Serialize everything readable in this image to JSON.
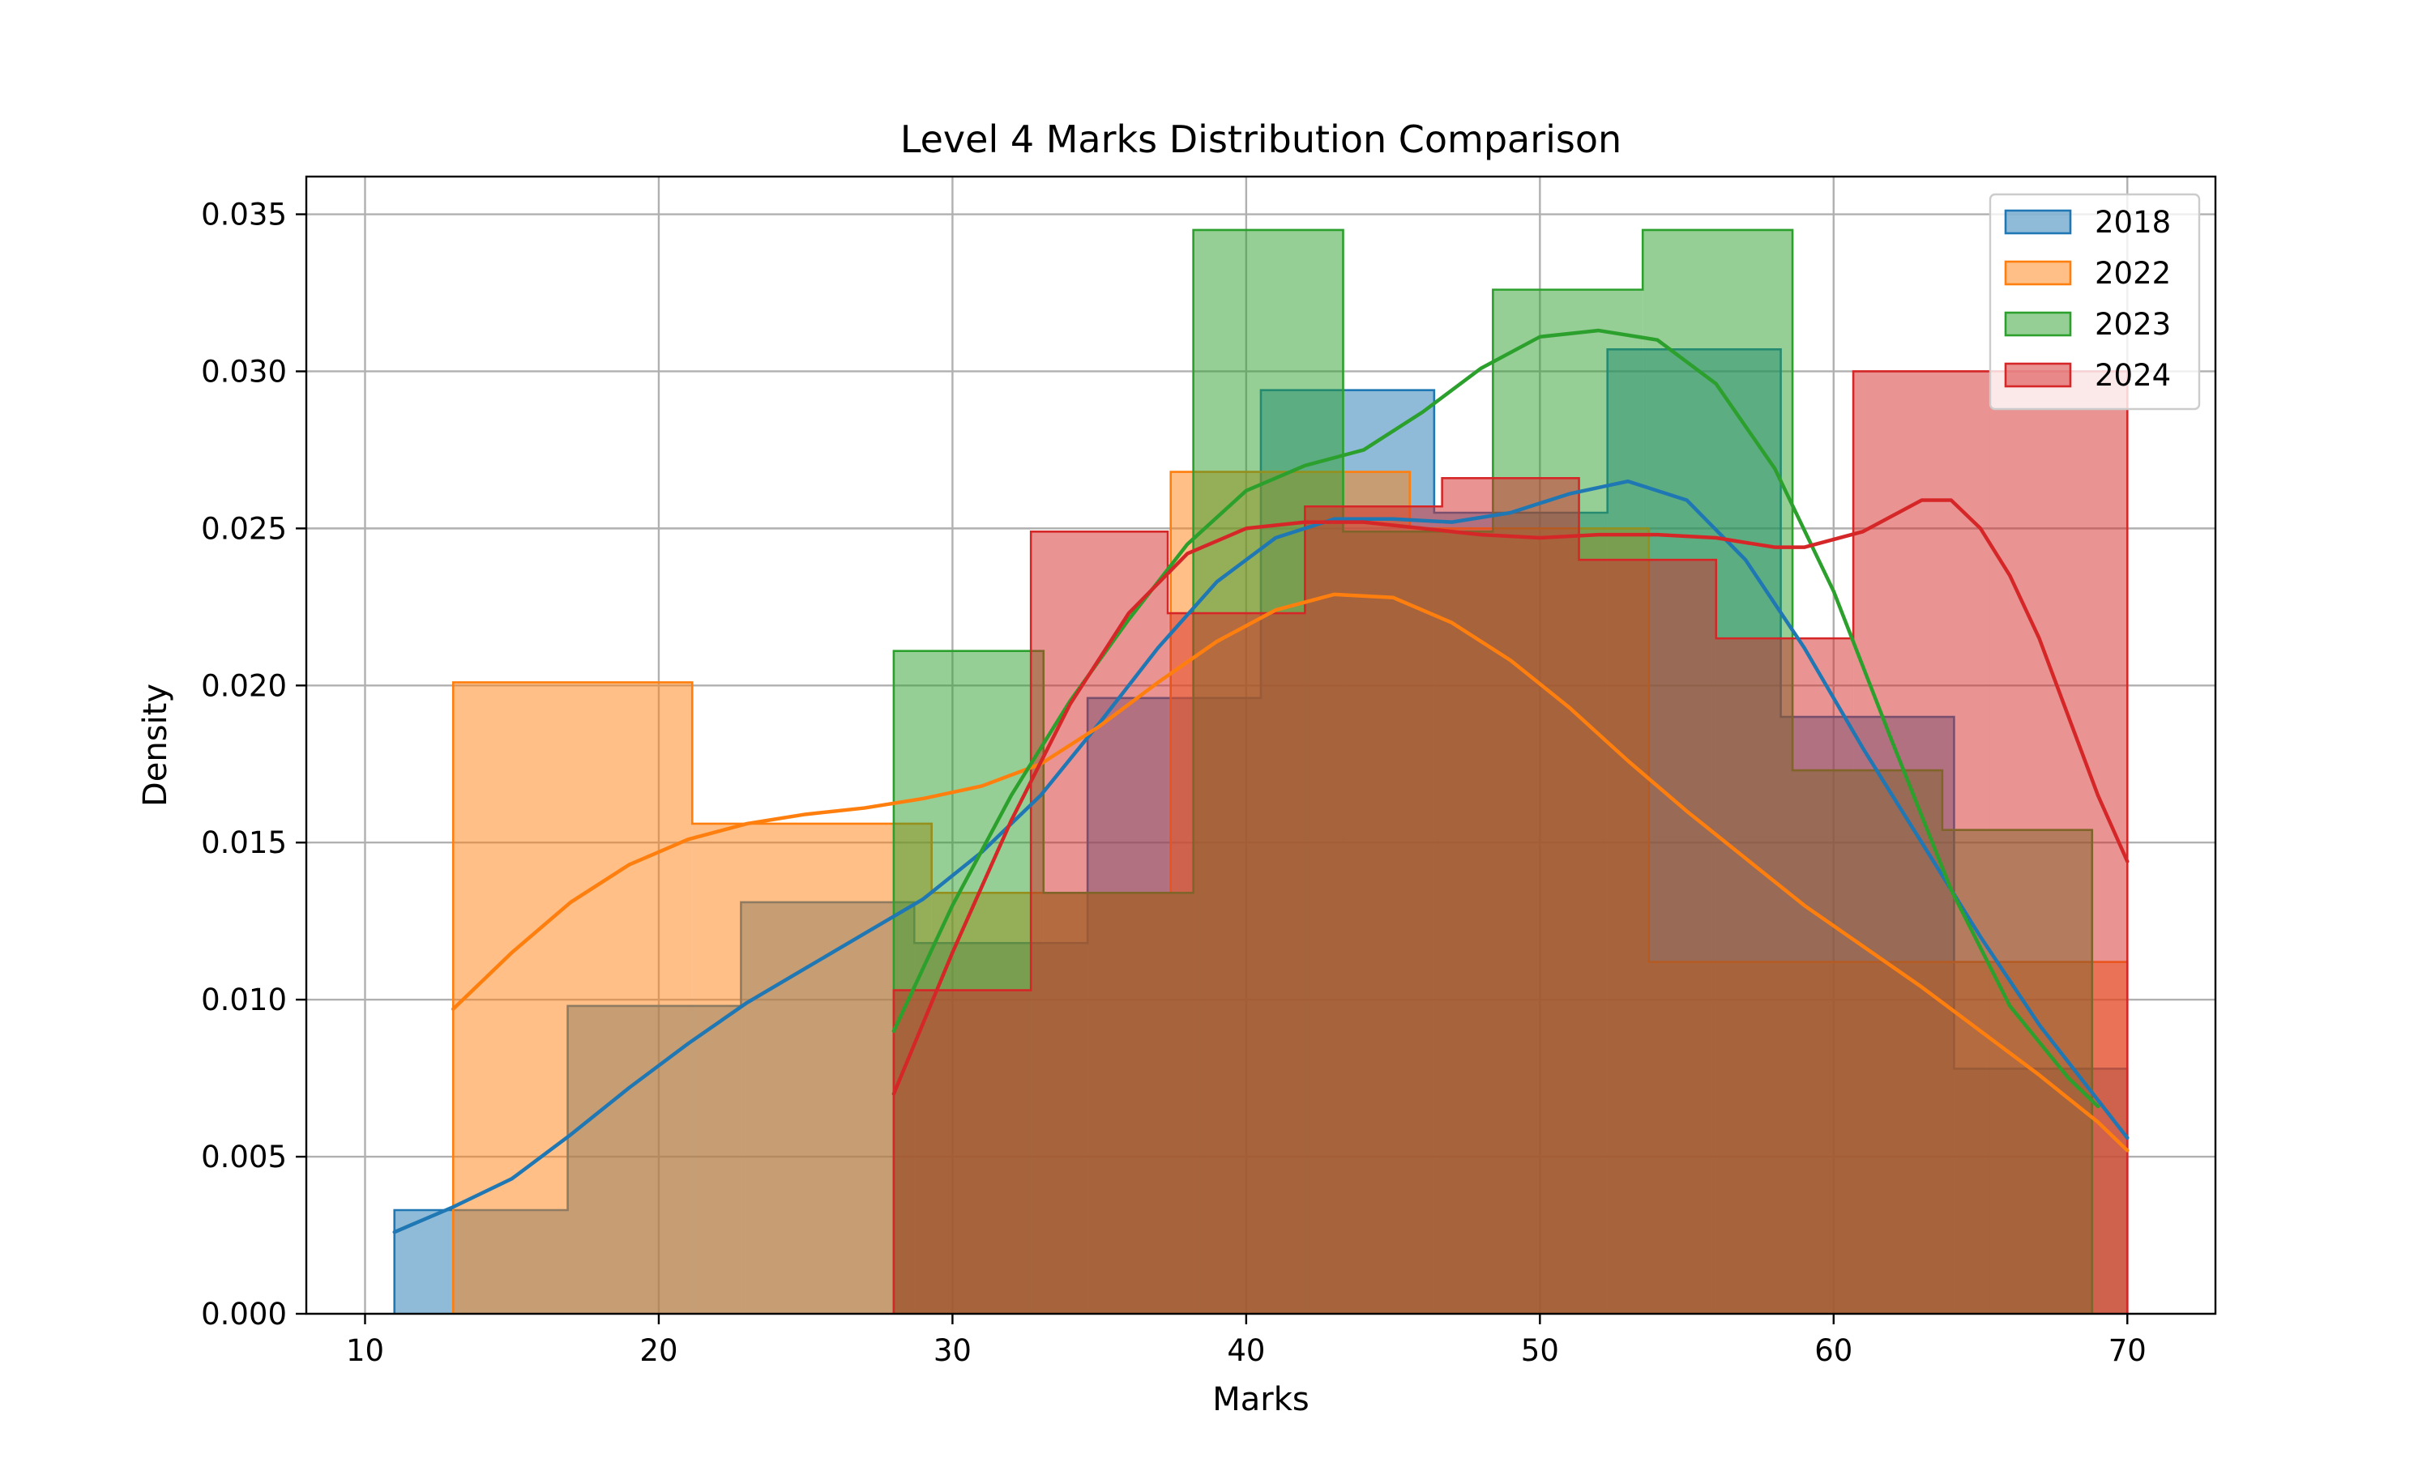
{
  "chart_data": {
    "type": "histogram",
    "title": "Level 4 Marks Distribution Comparison",
    "xlabel": "Marks",
    "ylabel": "Density",
    "xlim": [
      8,
      73
    ],
    "ylim": [
      0,
      0.0362
    ],
    "xticks": [
      10,
      20,
      30,
      40,
      50,
      60,
      70
    ],
    "xtick_labels": [
      "10",
      "20",
      "30",
      "40",
      "50",
      "60",
      "70"
    ],
    "yticks": [
      0,
      0.005,
      0.01,
      0.015,
      0.02,
      0.025,
      0.03,
      0.035
    ],
    "ytick_labels": [
      "0.000",
      "0.005",
      "0.010",
      "0.015",
      "0.020",
      "0.025",
      "0.030",
      "0.035"
    ],
    "grid": true,
    "legend_position": "top-right",
    "series": [
      {
        "name": "2018",
        "color": "#1f77b4",
        "bin_edges": [
          11,
          16.9,
          22.8,
          28.7,
          34.6,
          40.5,
          46.4,
          52.3,
          58.2,
          64.1,
          70
        ],
        "densities": [
          0.0033,
          0.0098,
          0.0131,
          0.0118,
          0.0196,
          0.0294,
          0.0255,
          0.0307,
          0.019,
          0.0078
        ],
        "kde": [
          [
            11,
            0.0026
          ],
          [
            13,
            0.0034
          ],
          [
            15,
            0.0043
          ],
          [
            17,
            0.0057
          ],
          [
            19,
            0.0072
          ],
          [
            21,
            0.0086
          ],
          [
            23,
            0.0099
          ],
          [
            25,
            0.011
          ],
          [
            27,
            0.0121
          ],
          [
            29,
            0.0132
          ],
          [
            31,
            0.0147
          ],
          [
            33,
            0.0165
          ],
          [
            35,
            0.0188
          ],
          [
            37,
            0.0212
          ],
          [
            39,
            0.0233
          ],
          [
            41,
            0.0247
          ],
          [
            43,
            0.0253
          ],
          [
            45,
            0.0253
          ],
          [
            47,
            0.0252
          ],
          [
            49,
            0.0255
          ],
          [
            51,
            0.0261
          ],
          [
            53,
            0.0265
          ],
          [
            55,
            0.0259
          ],
          [
            57,
            0.024
          ],
          [
            59,
            0.0212
          ],
          [
            61,
            0.018
          ],
          [
            63,
            0.015
          ],
          [
            65,
            0.012
          ],
          [
            67,
            0.0092
          ],
          [
            69,
            0.0068
          ],
          [
            70,
            0.0056
          ]
        ]
      },
      {
        "name": "2022",
        "color": "#ff7f0e",
        "bin_edges": [
          13,
          21.14,
          29.29,
          37.43,
          45.57,
          53.71,
          61.86,
          70
        ],
        "densities": [
          0.0201,
          0.0156,
          0.0134,
          0.0268,
          0.025,
          0.0112,
          0.0112
        ],
        "kde": [
          [
            13,
            0.0097
          ],
          [
            15,
            0.0115
          ],
          [
            17,
            0.0131
          ],
          [
            19,
            0.0143
          ],
          [
            21,
            0.0151
          ],
          [
            23,
            0.0156
          ],
          [
            25,
            0.0159
          ],
          [
            27,
            0.0161
          ],
          [
            29,
            0.0164
          ],
          [
            31,
            0.0168
          ],
          [
            33,
            0.0175
          ],
          [
            35,
            0.0187
          ],
          [
            37,
            0.0201
          ],
          [
            39,
            0.0214
          ],
          [
            41,
            0.0224
          ],
          [
            43,
            0.0229
          ],
          [
            45,
            0.0228
          ],
          [
            47,
            0.022
          ],
          [
            49,
            0.0208
          ],
          [
            51,
            0.0193
          ],
          [
            53,
            0.0176
          ],
          [
            55,
            0.016
          ],
          [
            57,
            0.0145
          ],
          [
            59,
            0.013
          ],
          [
            61,
            0.0117
          ],
          [
            63,
            0.0104
          ],
          [
            65,
            0.009
          ],
          [
            67,
            0.0076
          ],
          [
            69,
            0.0061
          ],
          [
            70,
            0.0052
          ]
        ]
      },
      {
        "name": "2023",
        "color": "#2ca02c",
        "bin_edges": [
          28,
          33.1,
          38.2,
          43.3,
          48.4,
          53.5,
          58.6,
          63.7,
          68.8
        ],
        "densities": [
          0.0211,
          0.0134,
          0.0345,
          0.0249,
          0.0326,
          0.0345,
          0.0173,
          0.0154
        ],
        "kde": [
          [
            28,
            0.009
          ],
          [
            30,
            0.013
          ],
          [
            32,
            0.0165
          ],
          [
            34,
            0.0195
          ],
          [
            36,
            0.0221
          ],
          [
            38,
            0.0245
          ],
          [
            40,
            0.0262
          ],
          [
            42,
            0.027
          ],
          [
            44,
            0.0275
          ],
          [
            46,
            0.0287
          ],
          [
            48,
            0.0301
          ],
          [
            50,
            0.0311
          ],
          [
            52,
            0.0313
          ],
          [
            54,
            0.031
          ],
          [
            56,
            0.0296
          ],
          [
            58,
            0.0269
          ],
          [
            60,
            0.023
          ],
          [
            62,
            0.0182
          ],
          [
            64,
            0.0135
          ],
          [
            66,
            0.0098
          ],
          [
            68,
            0.0075
          ],
          [
            69,
            0.0066
          ]
        ]
      },
      {
        "name": "2024",
        "color": "#d62728",
        "bin_edges": [
          28,
          32.67,
          37.33,
          42,
          46.67,
          51.33,
          56,
          60.67,
          65.33,
          70
        ],
        "densities": [
          0.0103,
          0.0249,
          0.0223,
          0.0257,
          0.0266,
          0.024,
          0.0215,
          0.03,
          0.03
        ],
        "kde": [
          [
            28,
            0.007
          ],
          [
            30,
            0.0115
          ],
          [
            32,
            0.0157
          ],
          [
            34,
            0.0194
          ],
          [
            36,
            0.0223
          ],
          [
            38,
            0.0242
          ],
          [
            40,
            0.025
          ],
          [
            42,
            0.0252
          ],
          [
            44,
            0.0252
          ],
          [
            46,
            0.025
          ],
          [
            48,
            0.0248
          ],
          [
            50,
            0.0247
          ],
          [
            52,
            0.0248
          ],
          [
            54,
            0.0248
          ],
          [
            56,
            0.0247
          ],
          [
            58,
            0.0244
          ],
          [
            59,
            0.0244
          ],
          [
            61,
            0.0249
          ],
          [
            63,
            0.0259
          ],
          [
            64,
            0.0259
          ],
          [
            65,
            0.025
          ],
          [
            66,
            0.0235
          ],
          [
            67,
            0.0215
          ],
          [
            68,
            0.019
          ],
          [
            69,
            0.0165
          ],
          [
            70,
            0.0144
          ]
        ]
      }
    ]
  }
}
